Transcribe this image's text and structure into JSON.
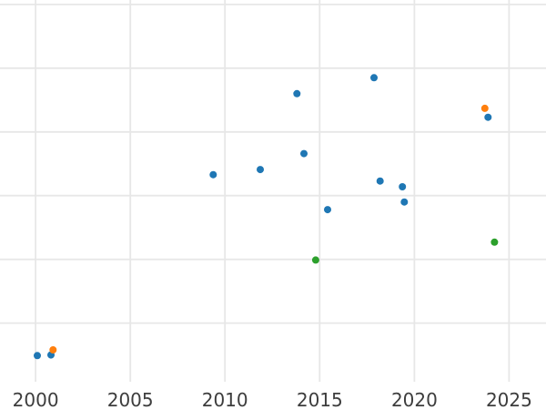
{
  "chart_data": {
    "type": "scatter",
    "title": "",
    "xlabel": "",
    "ylabel": "",
    "grid": true,
    "legend": "none",
    "x_ticks": [
      {
        "value": 2000,
        "label": "2000"
      },
      {
        "value": 2005,
        "label": "2005"
      },
      {
        "value": 2010,
        "label": "2010"
      },
      {
        "value": 2015,
        "label": "2015"
      },
      {
        "value": 2020,
        "label": "2020"
      },
      {
        "value": 2025,
        "label": "2025"
      }
    ],
    "x_range": [
      1998.12,
      2026.95
    ],
    "y_tick_labels_visible": false,
    "y_unit": "unlabeled-gridline-units",
    "y_gridlines": [
      0,
      1,
      2,
      3,
      4,
      5
    ],
    "y_range_visible": [
      -0.92,
      5.07
    ],
    "style": {
      "background_color": "#ffffff",
      "grid_color": "#e7e7e7",
      "tick_label_color": "#3d3d3d"
    },
    "series": [
      {
        "name": "blue",
        "color": "#1f77b4",
        "points": [
          [
            2000.09,
            -0.51
          ],
          [
            2000.81,
            -0.5
          ],
          [
            2009.38,
            2.33
          ],
          [
            2011.86,
            2.41
          ],
          [
            2013.8,
            3.6
          ],
          [
            2014.17,
            2.66
          ],
          [
            2015.42,
            1.78
          ],
          [
            2017.87,
            3.85
          ],
          [
            2018.19,
            2.23
          ],
          [
            2019.37,
            2.14
          ],
          [
            2019.47,
            1.9
          ],
          [
            2023.89,
            3.23
          ]
        ]
      },
      {
        "name": "orange",
        "color": "#ff7f0e",
        "points": [
          [
            2000.92,
            -0.42
          ],
          [
            2023.72,
            3.37
          ]
        ]
      },
      {
        "name": "green",
        "color": "#2ca02c",
        "points": [
          [
            2014.79,
            0.99
          ],
          [
            2024.23,
            1.27
          ]
        ]
      }
    ]
  }
}
